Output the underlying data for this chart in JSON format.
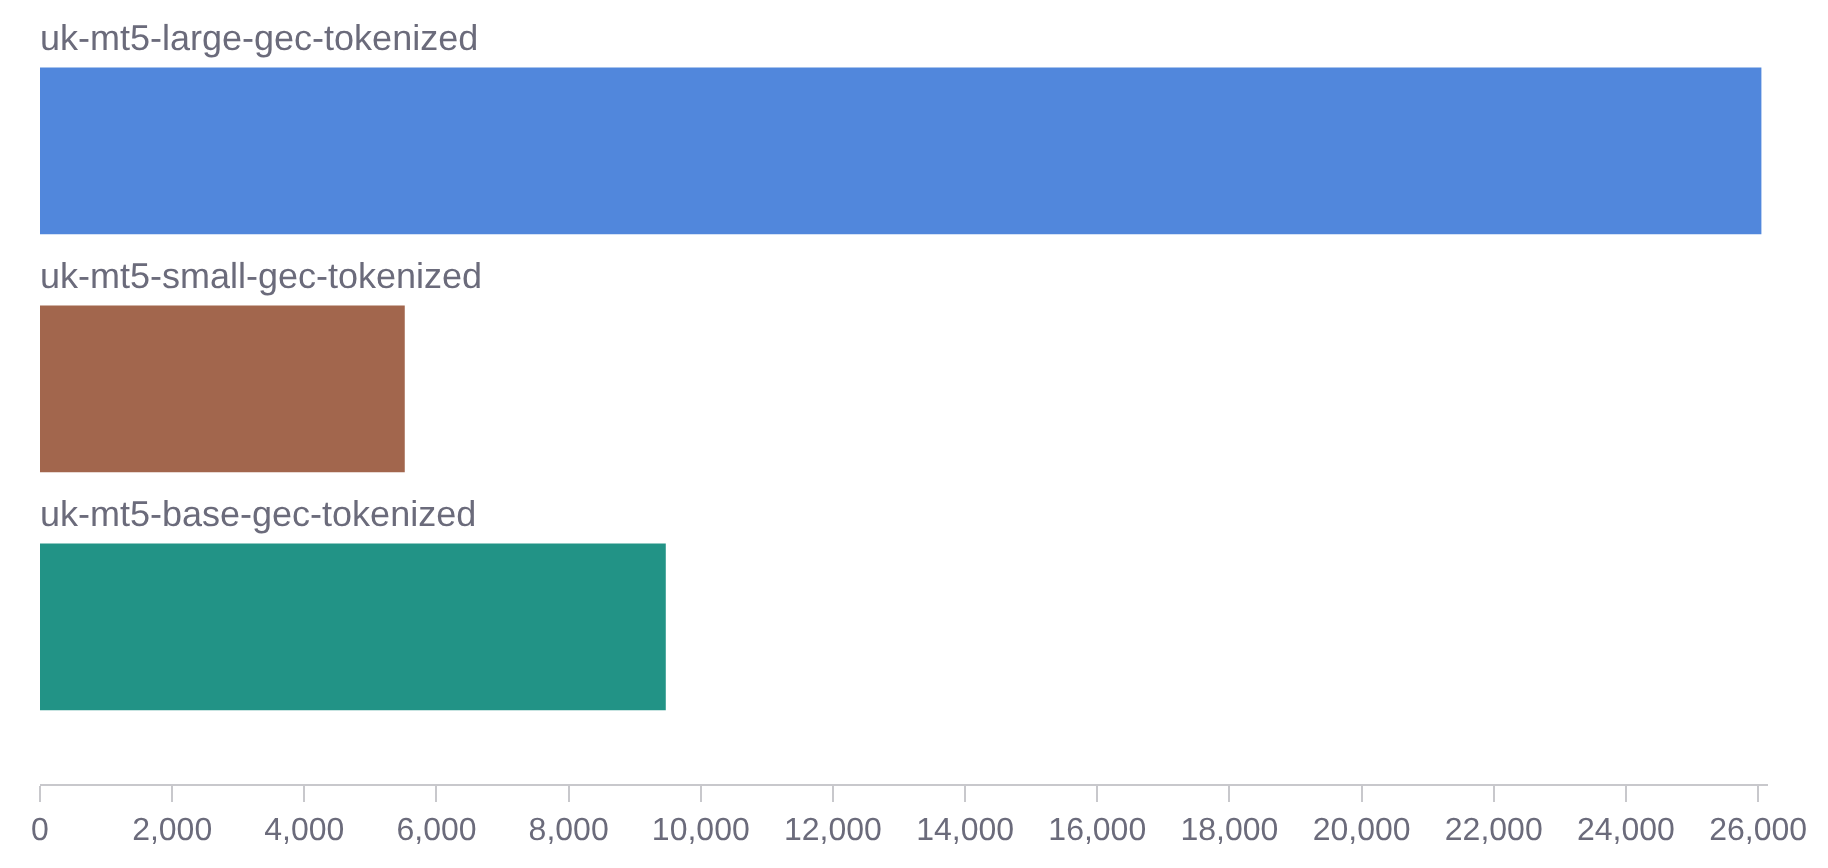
{
  "chart_data": {
    "type": "bar",
    "orientation": "horizontal",
    "categories": [
      "uk-mt5-large-gec-tokenized",
      "uk-mt5-small-gec-tokenized",
      "uk-mt5-base-gec-tokenized"
    ],
    "values": [
      26050,
      5520,
      9470
    ],
    "colors": [
      "#5187dc",
      "#a2664d",
      "#229386"
    ],
    "xlim": [
      0,
      26150
    ],
    "xticks": [
      0,
      {
        "value": 2000,
        "label": "2,000"
      },
      {
        "value": 4000,
        "label": "4,000"
      },
      {
        "value": 6000,
        "label": "6,000"
      },
      {
        "value": 8000,
        "label": "8,000"
      },
      {
        "value": 10000,
        "label": "10,000"
      },
      {
        "value": 12000,
        "label": "12,000"
      },
      {
        "value": 14000,
        "label": "14,000"
      },
      {
        "value": 16000,
        "label": "16,000"
      },
      {
        "value": 18000,
        "label": "18,000"
      },
      {
        "value": 20000,
        "label": "20,000"
      },
      {
        "value": 22000,
        "label": "22,000"
      },
      {
        "value": 24000,
        "label": "24,000"
      },
      {
        "value": 26000,
        "label": "26,000"
      }
    ]
  }
}
